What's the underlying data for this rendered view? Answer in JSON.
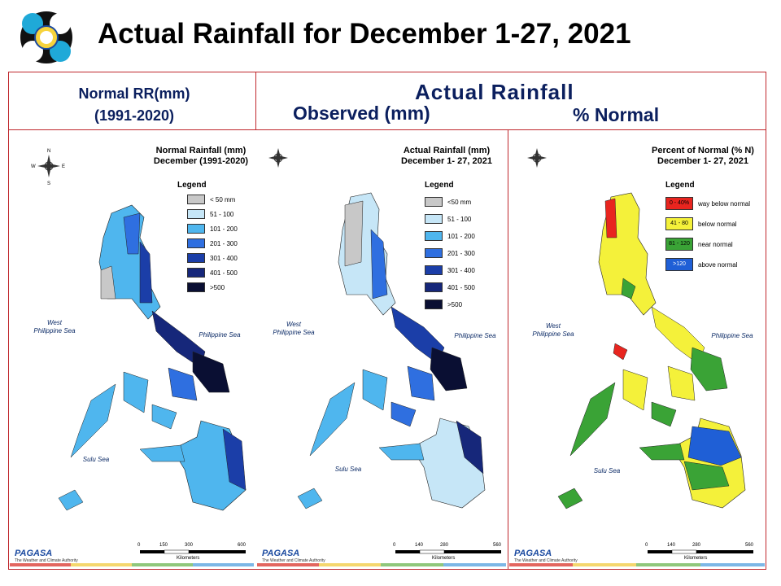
{
  "slide_title": "Actual Rainfall for December 1-27, 2021",
  "headers": {
    "normal_line1": "Normal RR(mm)",
    "normal_line2": "(1991-2020)",
    "actual": "Actual Rainfall",
    "observed": "Observed (mm)",
    "percent": "% Normal"
  },
  "panels": [
    {
      "title_line1": "Normal Rainfall (mm)",
      "title_line2": "December (1991-2020)",
      "legend_title": "Legend",
      "legend": [
        {
          "label": "< 50 mm",
          "color": "#c8c8c8"
        },
        {
          "label": "51 - 100",
          "color": "#c6e6f7"
        },
        {
          "label": "101 - 200",
          "color": "#4fb6ee"
        },
        {
          "label": "201 - 300",
          "color": "#2f6fe0"
        },
        {
          "label": "301 - 400",
          "color": "#1b3ea8"
        },
        {
          "label": "401 - 500",
          "color": "#16277a"
        },
        {
          "label": ">500",
          "color": "#0a0f33"
        }
      ],
      "sea_west_1": "West",
      "sea_west_2": "Philippine Sea",
      "sea_east": "Philippine Sea",
      "sea_south": "Sulu Sea",
      "scale": [
        "0",
        "150",
        "300",
        "600"
      ],
      "scale_unit": "Kilometers"
    },
    {
      "title_line1": "Actual Rainfall (mm)",
      "title_line2": "December 1- 27, 2021",
      "legend_title": "Legend",
      "legend": [
        {
          "label": "<50 mm",
          "color": "#c8c8c8"
        },
        {
          "label": "51 - 100",
          "color": "#c6e6f7"
        },
        {
          "label": "101 - 200",
          "color": "#4fb6ee"
        },
        {
          "label": "201 - 300",
          "color": "#2f6fe0"
        },
        {
          "label": "301 - 400",
          "color": "#1b3ea8"
        },
        {
          "label": "401 - 500",
          "color": "#16277a"
        },
        {
          "label": ">500",
          "color": "#0a0f33"
        }
      ],
      "sea_west_1": "West",
      "sea_west_2": "Philippine Sea",
      "sea_east": "Philippine Sea",
      "sea_south": "Sulu Sea",
      "scale": [
        "0",
        "140",
        "280",
        "560"
      ],
      "scale_unit": "Kilometers"
    },
    {
      "title_line1": "Percent of Normal (% N)",
      "title_line2": "December 1- 27, 2021",
      "legend_title": "Legend",
      "legend": [
        {
          "swatch": "0 - 40%",
          "label": "way below normal",
          "color": "#e8251f"
        },
        {
          "swatch": "41 - 80",
          "label": "below normal",
          "color": "#f4f13a"
        },
        {
          "swatch": "81 - 120",
          "label": "near normal",
          "color": "#3aa336"
        },
        {
          "swatch": ">120",
          "label": "above normal",
          "color": "#1f5fd6"
        }
      ],
      "sea_west_1": "West",
      "sea_west_2": "Philippine Sea",
      "sea_east": "Philippine Sea",
      "sea_south": "Sulu Sea",
      "scale": [
        "0",
        "140",
        "280",
        "560"
      ],
      "scale_unit": "Kilometers"
    }
  ],
  "branding": {
    "name": "PAGASA",
    "tagline": "The Weather and Climate Authority"
  },
  "colors": {
    "frame": "#c0282d",
    "header_text": "#0b1f5e"
  }
}
